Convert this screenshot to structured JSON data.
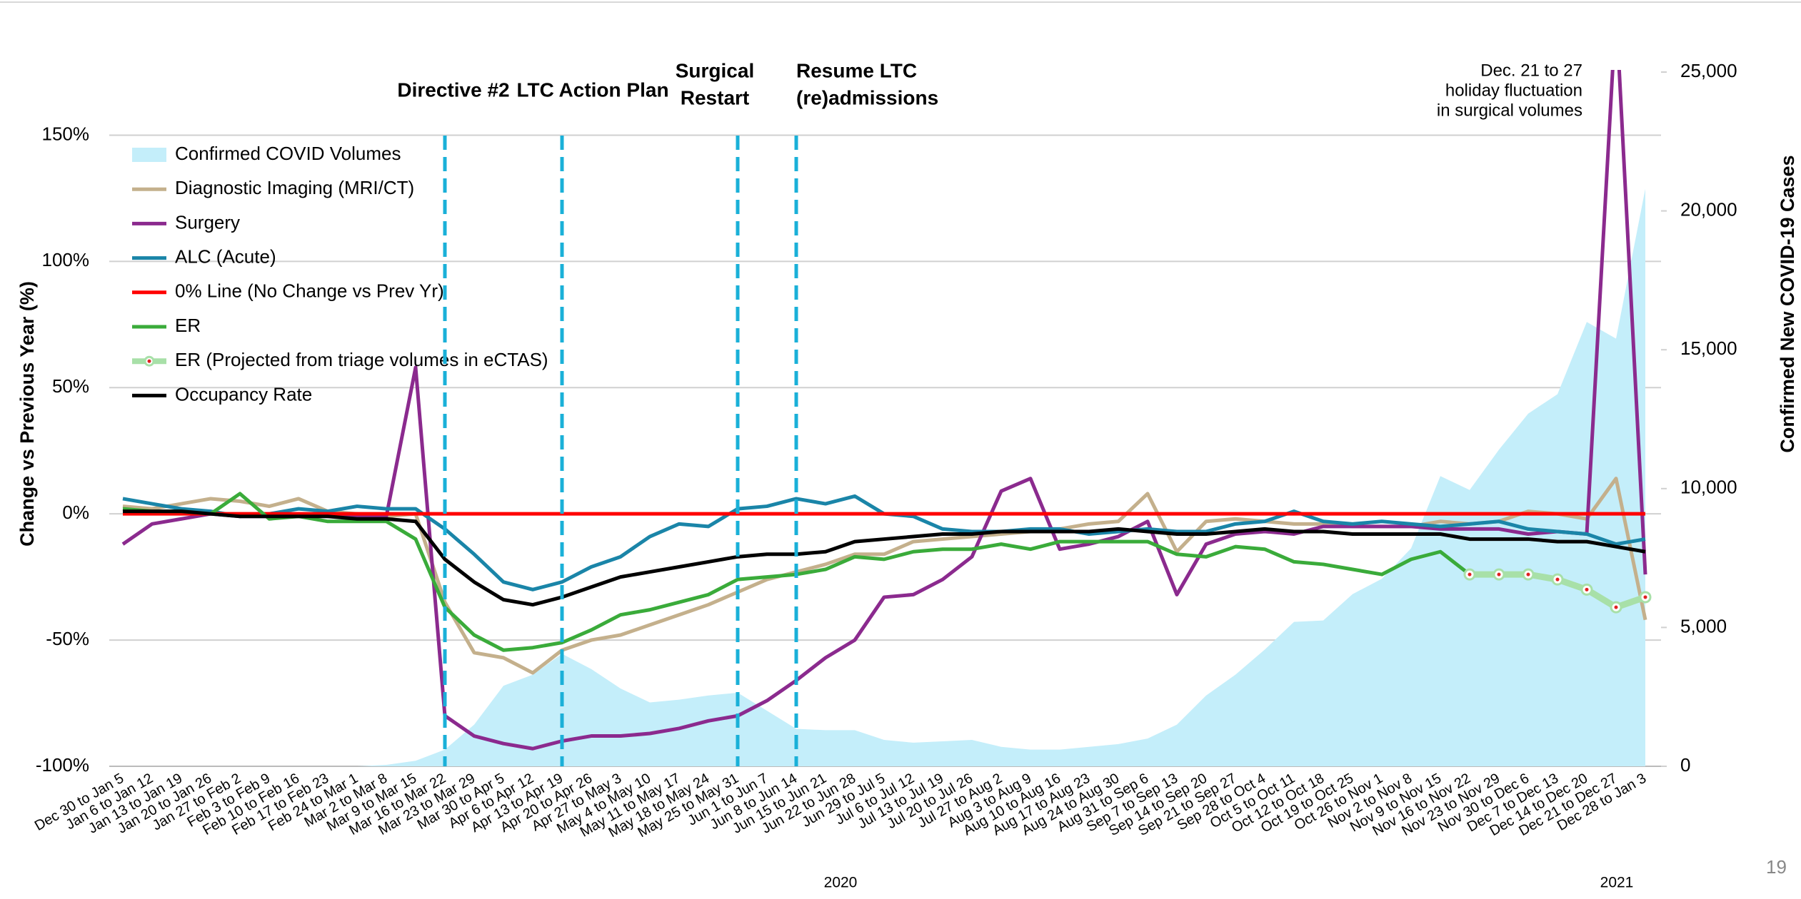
{
  "chart_data": {
    "type": "line",
    "y_label": "Change vs Previous Year (%)",
    "y2_label": "Confirmed New COVID-19 Cases",
    "categories": [
      "Dec 30 to Jan 5",
      "Jan 6 to Jan 12",
      "Jan 13 to Jan 19",
      "Jan 20 to Jan 26",
      "Jan 27 to Feb 2",
      "Feb 3 to Feb 9",
      "Feb 10 to Feb 16",
      "Feb 17 to Feb 23",
      "Feb 24 to Mar 1",
      "Mar 2 to Mar 8",
      "Mar 9 to Mar 15",
      "Mar 16 to Mar 22",
      "Mar 23 to Mar 29",
      "Mar 30 to Apr 5",
      "Apr 6 to Apr 12",
      "Apr 13 to Apr 19",
      "Apr 20 to Apr 26",
      "Apr 27 to May 3",
      "May 4 to May 10",
      "May 11 to May 17",
      "May 18 to May 24",
      "May 25 to May 31",
      "Jun 1 to Jun 7",
      "Jun 8 to Jun 14",
      "Jun 15 to Jun 21",
      "Jun 22 to Jun 28",
      "Jun 29 to Jul 5",
      "Jul 6 to Jul 12",
      "Jul 13 to Jul 19",
      "Jul 20 to Jul 26",
      "Jul 27 to Aug 2",
      "Aug 3 to Aug 9",
      "Aug 10 to Aug 16",
      "Aug 17 to Aug 23",
      "Aug 24 to Aug 30",
      "Aug 31 to Sep 6",
      "Sep 7 to Sep 13",
      "Sep 14 to Sep 20",
      "Sep 21 to Sep 27",
      "Sep 28 to Oct 4",
      "Oct 5 to Oct 11",
      "Oct 12 to Oct 18",
      "Oct 19 to Oct 25",
      "Oct 26 to Nov 1",
      "Nov 2 to Nov 8",
      "Nov 9 to Nov 15",
      "Nov 16 to Nov 22",
      "Nov 23 to Nov 29",
      "Nov 30 to Dec 6",
      "Dec 7 to Dec 13",
      "Dec 14 to Dec 20",
      "Dec 21 to Dec 27",
      "Dec 28 to Jan 3"
    ],
    "year_labels": [
      "2020",
      "2021"
    ],
    "ylim": [
      -100,
      175
    ],
    "yticks": [
      {
        "value": -100,
        "label": "-100%"
      },
      {
        "value": -50,
        "label": "-50%"
      },
      {
        "value": 0,
        "label": "0%"
      },
      {
        "value": 50,
        "label": "50%"
      },
      {
        "value": 100,
        "label": "100%"
      },
      {
        "value": 150,
        "label": "150%"
      }
    ],
    "y2lim": [
      0,
      25000
    ],
    "y2ticks": [
      0,
      {
        "value": 5000,
        "label": "5,000"
      },
      {
        "value": 10000,
        "label": "10,000"
      },
      {
        "value": 15000,
        "label": "15,000"
      },
      {
        "value": 20000,
        "label": "20,000"
      },
      {
        "value": 25000,
        "label": "25,000"
      }
    ],
    "grid": true,
    "series": [
      {
        "name": "Confirmed COVID Volumes",
        "type": "area",
        "axis": "y2",
        "color": "#c4eefa",
        "values": [
          0,
          0,
          0,
          0,
          0,
          0,
          0,
          0,
          0,
          50,
          200,
          600,
          1500,
          2900,
          3300,
          4050,
          3500,
          2800,
          2300,
          2400,
          2550,
          2650,
          2000,
          1350,
          1300,
          1300,
          950,
          850,
          900,
          950,
          700,
          600,
          600,
          700,
          800,
          1000,
          1500,
          2550,
          3300,
          4200,
          5200,
          5250,
          6200,
          6750,
          7850,
          10450,
          9950,
          11400,
          12700,
          13400,
          16000,
          15400,
          20800
        ]
      },
      {
        "name": "Diagnostic Imaging (MRI/CT)",
        "type": "line",
        "color": "#c4b08c",
        "values": [
          3,
          2,
          4,
          6,
          5,
          3,
          6,
          1,
          0,
          -1,
          0,
          -35,
          -55,
          -57,
          -63,
          -54,
          -50,
          -48,
          -44,
          -40,
          -36,
          -31,
          -26,
          -23,
          -20,
          -16,
          -16,
          -11,
          -10,
          -9,
          -8,
          -7,
          -6,
          -4,
          -3,
          8,
          -15,
          -3,
          -2,
          -3,
          -4,
          -4,
          -5,
          -5,
          -5,
          -3,
          -4,
          -3,
          1,
          0,
          -2,
          14,
          -42
        ]
      },
      {
        "name": "Surgery",
        "type": "line",
        "color": "#8b2a8e",
        "values": [
          -12,
          -4,
          -2,
          0,
          -1,
          -1,
          0,
          -1,
          -1,
          -1,
          58,
          -80,
          -88,
          -91,
          -93,
          -90,
          -88,
          -88,
          -87,
          -85,
          -82,
          -80,
          -74,
          -66,
          -57,
          -50,
          -33,
          -32,
          -26,
          -17,
          9,
          14,
          -14,
          -12,
          -9,
          -3,
          -32,
          -12,
          -8,
          -7,
          -8,
          -5,
          -5,
          -5,
          -5,
          -6,
          -6,
          -6,
          -8,
          -7,
          -8,
          200,
          -24
        ]
      },
      {
        "name": "ALC (Acute)",
        "type": "line",
        "color": "#1a85a8",
        "values": [
          6,
          4,
          2,
          1,
          -1,
          0,
          2,
          1,
          3,
          2,
          2,
          -6,
          -16,
          -27,
          -30,
          -27,
          -21,
          -17,
          -9,
          -4,
          -5,
          2,
          3,
          6,
          4,
          7,
          0,
          -1,
          -6,
          -7,
          -7,
          -6,
          -6,
          -8,
          -7,
          -6,
          -7,
          -7,
          -4,
          -3,
          1,
          -3,
          -4,
          -3,
          -4,
          -5,
          -4,
          -3,
          -6,
          -7,
          -8,
          -12,
          -10
        ]
      },
      {
        "name": "0% Line (No Change vs Prev Yr)",
        "type": "line",
        "color": "#ff0000",
        "values": [
          0,
          0,
          0,
          0,
          0,
          0,
          0,
          0,
          0,
          0,
          0,
          0,
          0,
          0,
          0,
          0,
          0,
          0,
          0,
          0,
          0,
          0,
          0,
          0,
          0,
          0,
          0,
          0,
          0,
          0,
          0,
          0,
          0,
          0,
          0,
          0,
          0,
          0,
          0,
          0,
          0,
          0,
          0,
          0,
          0,
          0,
          0,
          0,
          0,
          0,
          0,
          0,
          0
        ]
      },
      {
        "name": "ER",
        "type": "line",
        "color": "#3aab3a",
        "values": [
          2,
          1,
          1,
          0,
          8,
          -2,
          -1,
          -3,
          -3,
          -3,
          -10,
          -37,
          -48,
          -54,
          -53,
          -51,
          -46,
          -40,
          -38,
          -35,
          -32,
          -26,
          -25,
          -24,
          -22,
          -17,
          -18,
          -15,
          -14,
          -14,
          -12,
          -14,
          -11,
          -11,
          -11,
          -11,
          -16,
          -17,
          -13,
          -14,
          -19,
          -20,
          -22,
          -24,
          -18,
          -15,
          -24,
          null,
          null,
          null,
          null,
          null,
          null
        ]
      },
      {
        "name": "ER (Projected from triage volumes in eCTAS)",
        "type": "line",
        "color": "#a8e0a8",
        "marker_color": "#e02020",
        "values": [
          null,
          null,
          null,
          null,
          null,
          null,
          null,
          null,
          null,
          null,
          null,
          null,
          null,
          null,
          null,
          null,
          null,
          null,
          null,
          null,
          null,
          null,
          null,
          null,
          null,
          null,
          null,
          null,
          null,
          null,
          null,
          null,
          null,
          null,
          null,
          null,
          null,
          null,
          null,
          null,
          null,
          null,
          null,
          null,
          null,
          null,
          -24,
          -24,
          -24,
          -26,
          -30,
          -37,
          -33
        ]
      },
      {
        "name": "Occupancy Rate",
        "type": "line",
        "color": "#000000",
        "values": [
          1,
          1,
          1,
          0,
          -1,
          -1,
          -1,
          -1,
          -2,
          -2,
          -3,
          -18,
          -27,
          -34,
          -36,
          -33,
          -29,
          -25,
          -23,
          -21,
          -19,
          -17,
          -16,
          -16,
          -15,
          -11,
          -10,
          -9,
          -8,
          -8,
          -7,
          -7,
          -7,
          -7,
          -6,
          -7,
          -8,
          -8,
          -7,
          -6,
          -7,
          -7,
          -8,
          -8,
          -8,
          -8,
          -10,
          -10,
          -10,
          -11,
          -11,
          -13,
          -15
        ]
      }
    ],
    "events": [
      {
        "x": "Mar 16 to Mar 22",
        "lines": [
          "Directive #2"
        ]
      },
      {
        "x": "Apr 13 to Apr 19",
        "lines": [
          "LTC Action Plan"
        ]
      },
      {
        "x": "May 25 to May 31",
        "lines": [
          "Surgical",
          "Restart"
        ]
      },
      {
        "x": "Jun 8 to Jun 14",
        "lines": [
          "Resume LTC",
          "(re)admissions"
        ]
      }
    ],
    "annotation": [
      "Dec. 21 to 27",
      "holiday fluctuation",
      "in surgical volumes"
    ],
    "page_number": "19"
  }
}
